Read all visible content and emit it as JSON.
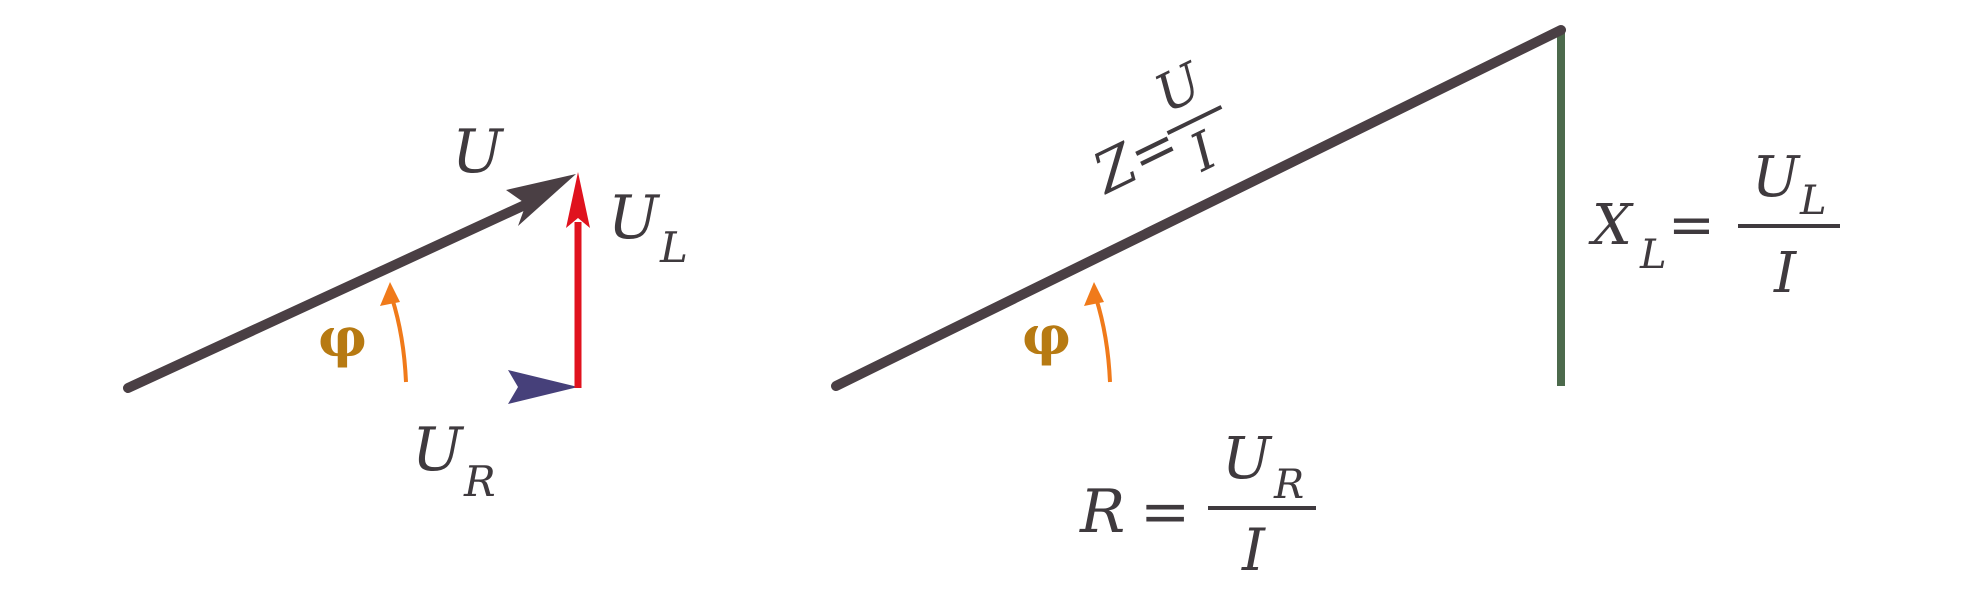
{
  "voltage_triangle": {
    "hypotenuse_label": "U",
    "vertical_label_main": "U",
    "vertical_label_sub": "L",
    "horizontal_label_main": "U",
    "horizontal_label_sub": "R",
    "angle_label": "φ"
  },
  "impedance_triangle": {
    "hypotenuse_prefix": "Z=",
    "hypotenuse_num": "U",
    "hypotenuse_den": "I",
    "vertical_main": "X",
    "vertical_sub": "L",
    "vertical_eq": "=",
    "vertical_num_main": "U",
    "vertical_num_sub": "L",
    "vertical_den": "I",
    "horizontal_main": "R",
    "horizontal_eq": "=",
    "horizontal_num_main": "U",
    "horizontal_num_sub": "R",
    "horizontal_den": "I",
    "angle_label": "φ"
  },
  "colors": {
    "hypotenuse": "#4a3f44",
    "ul_vector": "#e0121e",
    "ur_vector": "#4c3f6a",
    "angle_arrow": "#f07a1a",
    "triangle_base": "#3f8a3a",
    "triangle_vertical": "#4c6a4c",
    "phi_text": "#b77a12"
  }
}
